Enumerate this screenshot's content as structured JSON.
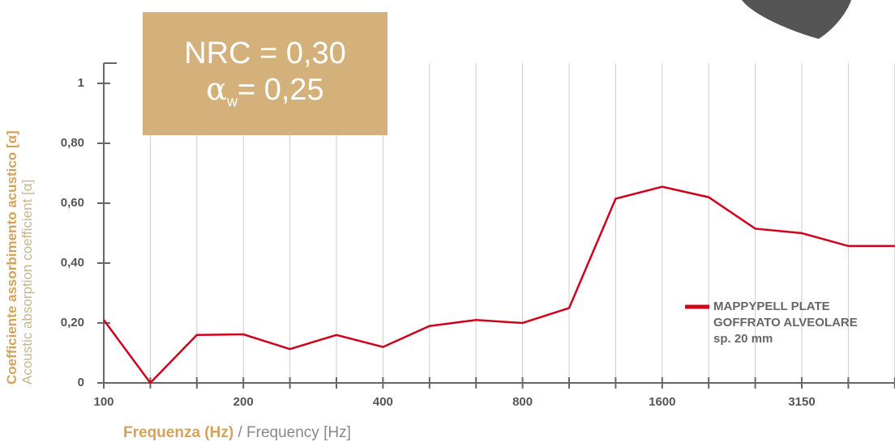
{
  "chart_data": {
    "type": "line",
    "annotation": {
      "nrc": "NRC = 0,30",
      "alpha_symbol": "α",
      "alpha_sub": "w",
      "alpha_value": "= 0,25"
    },
    "ylabel": {
      "main": "Coefficiente assorbimento acustico [α]",
      "sub": "Acoustic absorption coefficient [α]"
    },
    "xlabel": {
      "main": "Frequenza (Hz)",
      "sub": " / Frequency [Hz]"
    },
    "categories": [
      "100",
      null,
      null,
      "200",
      null,
      null,
      "400",
      null,
      null,
      "800",
      null,
      null,
      "1600",
      null,
      null,
      "3150",
      null,
      null
    ],
    "series": [
      {
        "name": "MAPPYPELL PLATE\nGOFFRATO ALVEOLARE\nsp. 20 mm",
        "color": "#d0021b",
        "values": [
          0.21,
          0,
          0.16,
          0.162,
          0.113,
          0.16,
          0.12,
          0.19,
          0.21,
          0.2,
          0.25,
          0.615,
          0.655,
          0.62,
          0.515,
          0.5,
          0.457,
          0.457
        ]
      }
    ],
    "ylim": [
      0,
      1
    ],
    "yticks": [
      {
        "value": 0,
        "label": "0"
      },
      {
        "value": 0.2,
        "label": "0,20"
      },
      {
        "value": 0.4,
        "label": "0,40"
      },
      {
        "value": 0.6,
        "label": "0,60"
      },
      {
        "value": 0.8,
        "label": "0,80"
      },
      {
        "value": 1,
        "label": "1"
      }
    ],
    "grid": true
  }
}
